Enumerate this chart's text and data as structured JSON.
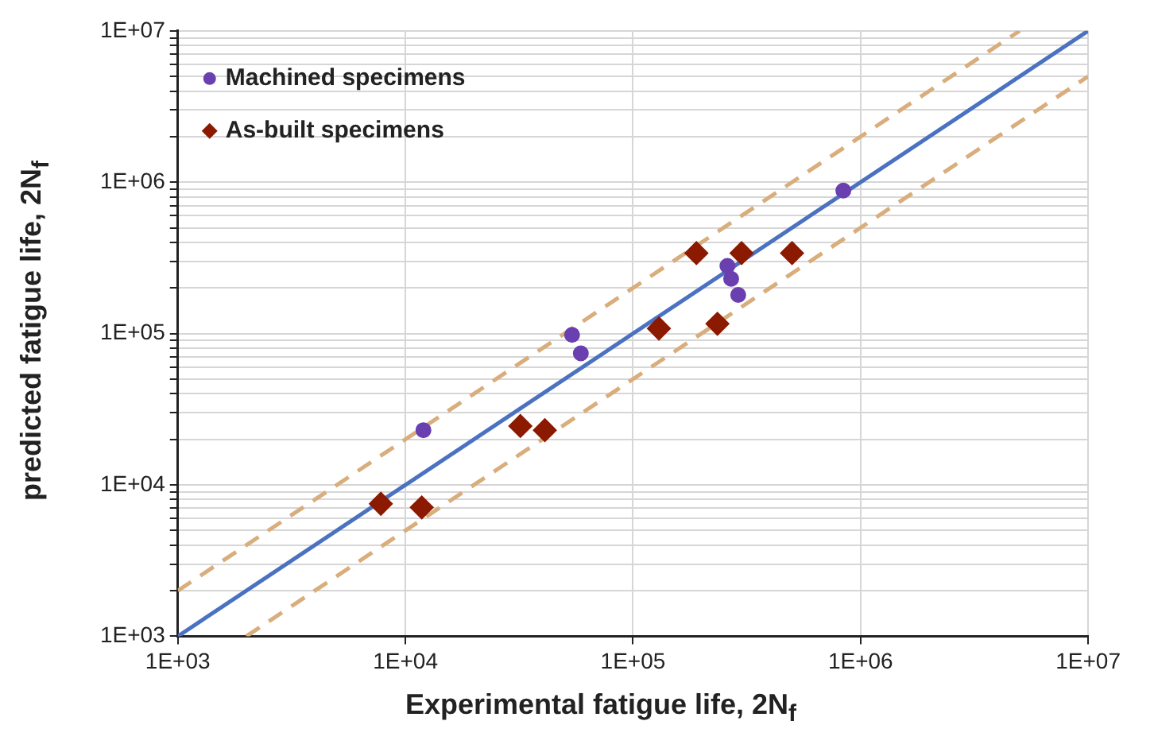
{
  "chart_data": {
    "type": "scatter",
    "xlabel": "Experimental fatigue life, 2N$_{f}$",
    "ylabel": "predicted fatigue life, 2N$_{f}$",
    "log": "xy",
    "grid": true,
    "legend": "top left",
    "xlim": [
      1000,
      10000000
    ],
    "ylim": [
      1000,
      10000000
    ],
    "xticks": [
      {
        "value": 1000,
        "label": "1E+03"
      },
      {
        "value": 10000,
        "label": "1E+04"
      },
      {
        "value": 100000,
        "label": "1E+05"
      },
      {
        "value": 1000000,
        "label": "1E+06"
      },
      {
        "value": 10000000,
        "label": "1E+07"
      }
    ],
    "yticks": [
      {
        "value": 1000,
        "label": "1E+03"
      },
      {
        "value": 2000,
        "label": null
      },
      {
        "value": 3000,
        "label": null
      },
      {
        "value": 4000,
        "label": null
      },
      {
        "value": 5000,
        "label": null
      },
      {
        "value": 6000,
        "label": null
      },
      {
        "value": 7000,
        "label": null
      },
      {
        "value": 8000,
        "label": null
      },
      {
        "value": 9000,
        "label": null
      },
      {
        "value": 10000,
        "label": "1E+04"
      },
      {
        "value": 20000,
        "label": null
      },
      {
        "value": 30000,
        "label": null
      },
      {
        "value": 40000,
        "label": null
      },
      {
        "value": 50000,
        "label": null
      },
      {
        "value": 60000,
        "label": null
      },
      {
        "value": 70000,
        "label": null
      },
      {
        "value": 80000,
        "label": null
      },
      {
        "value": 90000,
        "label": null
      },
      {
        "value": 100000,
        "label": "1E+05"
      },
      {
        "value": 200000,
        "label": null
      },
      {
        "value": 300000,
        "label": null
      },
      {
        "value": 400000,
        "label": null
      },
      {
        "value": 500000,
        "label": null
      },
      {
        "value": 600000,
        "label": null
      },
      {
        "value": 700000,
        "label": null
      },
      {
        "value": 800000,
        "label": null
      },
      {
        "value": 900000,
        "label": null
      },
      {
        "value": 1000000,
        "label": "1E+06"
      },
      {
        "value": 2000000,
        "label": null
      },
      {
        "value": 3000000,
        "label": null
      },
      {
        "value": 4000000,
        "label": null
      },
      {
        "value": 5000000,
        "label": null
      },
      {
        "value": 6000000,
        "label": null
      },
      {
        "value": 7000000,
        "label": null
      },
      {
        "value": 8000000,
        "label": null
      },
      {
        "value": 9000000,
        "label": null
      },
      {
        "value": 10000000,
        "label": "1E+07"
      }
    ],
    "series": [
      {
        "type": "line",
        "color": "#d9ad7c",
        "line_style": "dashed",
        "marker": "none",
        "x": [
          1000,
          5000000
        ],
        "values": [
          2000,
          10000000
        ]
      },
      {
        "type": "line",
        "color": "#d9ad7c",
        "line_style": "dashed",
        "marker": "none",
        "x": [
          2000,
          10000000
        ],
        "values": [
          1000,
          5000000
        ]
      },
      {
        "type": "line",
        "color": "#4a72c0",
        "line_style": "solid",
        "marker": "none",
        "x": [
          1000,
          10000000
        ],
        "values": [
          1000,
          10000000
        ]
      },
      {
        "name": "Machined specimens",
        "type": "scatter",
        "color": "#6a3fb0",
        "marker": "circle",
        "x": [
          12000,
          54000,
          59000,
          260000,
          270000,
          290000,
          840000
        ],
        "values": [
          23000,
          98000,
          74000,
          280000,
          230000,
          180000,
          880000
        ]
      },
      {
        "name": "As-built specimens",
        "type": "scatter",
        "color": "#8b1a00",
        "marker": "diamond",
        "x": [
          7800,
          11800,
          32000,
          41000,
          130000,
          190000,
          235000,
          300000,
          500000
        ],
        "values": [
          7500,
          7100,
          24500,
          23000,
          108000,
          340000,
          116000,
          340000,
          340000
        ]
      }
    ]
  }
}
